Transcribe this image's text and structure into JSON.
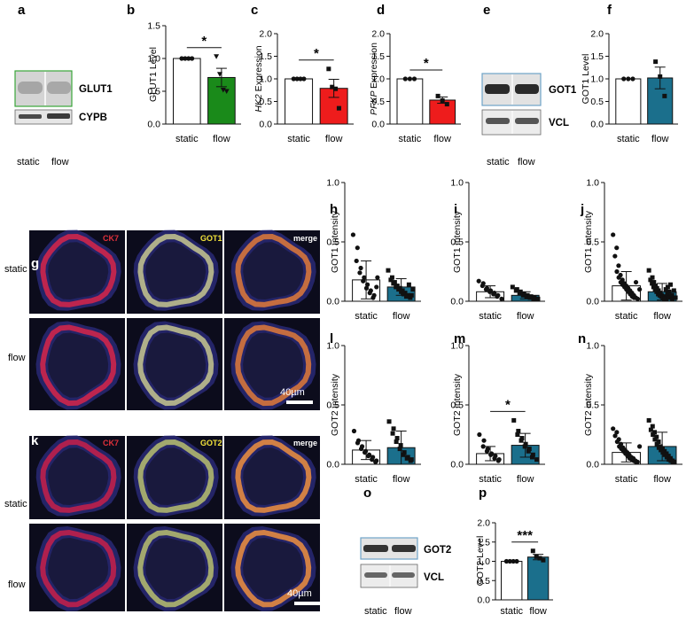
{
  "colors": {
    "white": "#ffffff",
    "green": "#1a8a1a",
    "red": "#ee1c1c",
    "teal": "#1b6f8c",
    "ck7": "#e0303a",
    "got": "#f2e23a",
    "merge": "#ffffff"
  },
  "panels": {
    "a": {
      "letter": "a",
      "bands": [
        "GLUT1",
        "CYPB"
      ],
      "lanes": [
        "static",
        "flow"
      ]
    },
    "e": {
      "letter": "e",
      "bands": [
        "GOT1",
        "VCL"
      ],
      "lanes": [
        "static",
        "flow"
      ]
    },
    "o": {
      "letter": "o",
      "bands": [
        "GOT2",
        "VCL"
      ],
      "lanes": [
        "static",
        "flow"
      ]
    },
    "g": {
      "letter": "g",
      "channels": [
        "CK7",
        "GOT1",
        "merge"
      ],
      "rows": [
        "static",
        "flow"
      ],
      "scalebar": "40µm"
    },
    "k": {
      "letter": "k",
      "channels": [
        "CK7",
        "GOT2",
        "merge"
      ],
      "rows": [
        "static",
        "flow"
      ],
      "scalebar": "40µm"
    }
  },
  "chart_data": [
    {
      "id": "b",
      "letter": "b",
      "type": "bar",
      "ylabel": "GLUT1 Level",
      "ylabel_italic": "",
      "ylim": [
        0,
        1.5
      ],
      "ticks": [
        "0.0",
        "0.5",
        "1.0",
        "1.5"
      ],
      "tick_values": [
        0,
        0.5,
        1.0,
        1.5
      ],
      "categories": [
        "static",
        "flow"
      ],
      "values": [
        1.0,
        0.71
      ],
      "errors": [
        0,
        0.14
      ],
      "points": [
        [
          1.0,
          1.0,
          1.0,
          1.0
        ],
        [
          1.03,
          0.76,
          0.52,
          0.5
        ]
      ],
      "marker": [
        "circle",
        "triangle"
      ],
      "fill": [
        "#ffffff",
        "#1a8a1a"
      ],
      "significance": "*"
    },
    {
      "id": "c",
      "letter": "c",
      "type": "bar",
      "ylabel": "Expression",
      "ylabel_italic": "HK2",
      "ylim": [
        0,
        2.0
      ],
      "ticks": [
        "0.0",
        "0.5",
        "1.0",
        "1.5",
        "2.0"
      ],
      "tick_values": [
        0,
        0.5,
        1.0,
        1.5,
        2.0
      ],
      "categories": [
        "static",
        "flow"
      ],
      "values": [
        1.0,
        0.79
      ],
      "errors": [
        0,
        0.2
      ],
      "points": [
        [
          1.0,
          1.0,
          1.0,
          1.0
        ],
        [
          1.22,
          0.82,
          0.78,
          0.35
        ]
      ],
      "marker": [
        "circle",
        "square"
      ],
      "fill": [
        "#ffffff",
        "#ee1c1c"
      ],
      "significance": "*"
    },
    {
      "id": "d",
      "letter": "d",
      "type": "bar",
      "ylabel": "Expression",
      "ylabel_italic": "PFKP",
      "ylim": [
        0,
        2.0
      ],
      "ticks": [
        "0.0",
        "0.5",
        "1.0",
        "1.5",
        "2.0"
      ],
      "tick_values": [
        0,
        0.5,
        1.0,
        1.5,
        2.0
      ],
      "categories": [
        "static",
        "flow"
      ],
      "values": [
        1.0,
        0.53
      ],
      "errors": [
        0,
        0.07
      ],
      "points": [
        [
          1.0,
          1.0,
          1.0
        ],
        [
          0.62,
          0.52,
          0.44
        ]
      ],
      "marker": [
        "circle",
        "square"
      ],
      "fill": [
        "#ffffff",
        "#ee1c1c"
      ],
      "significance": "*"
    },
    {
      "id": "f",
      "letter": "f",
      "type": "bar",
      "ylabel": "GOT1 Level",
      "ylabel_italic": "",
      "ylim": [
        0,
        2.0
      ],
      "ticks": [
        "0.0",
        "0.5",
        "1.0",
        "1.5",
        "2.0"
      ],
      "tick_values": [
        0,
        0.5,
        1.0,
        1.5,
        2.0
      ],
      "categories": [
        "static",
        "flow"
      ],
      "values": [
        1.0,
        1.02
      ],
      "errors": [
        0,
        0.24
      ],
      "points": [
        [
          1.0,
          1.0,
          1.0
        ],
        [
          1.38,
          1.05,
          0.62
        ]
      ],
      "marker": [
        "circle",
        "square"
      ],
      "fill": [
        "#ffffff",
        "#1b6f8c"
      ],
      "significance": ""
    },
    {
      "id": "h",
      "letter": "h",
      "type": "bar",
      "ylabel": "GOT1 intensity",
      "ylabel_italic": "",
      "ylim": [
        0,
        1.0
      ],
      "ticks": [
        "0.0",
        "0.5",
        "1.0"
      ],
      "tick_values": [
        0,
        0.5,
        1.0
      ],
      "categories": [
        "static",
        "flow"
      ],
      "values": [
        0.18,
        0.12
      ],
      "errors": [
        0.16,
        0.07
      ],
      "points": [
        [
          0.56,
          0.45,
          0.34,
          0.28,
          0.24,
          0.2,
          0.17,
          0.14,
          0.11,
          0.09,
          0.07,
          0.05,
          0.03,
          0.2,
          0.12
        ],
        [
          0.26,
          0.2,
          0.18,
          0.16,
          0.15,
          0.13,
          0.12,
          0.11,
          0.1,
          0.09,
          0.08,
          0.07,
          0.06,
          0.05,
          0.04,
          0.03,
          0.14,
          0.1,
          0.05
        ]
      ],
      "marker": [
        "circle",
        "square"
      ],
      "fill": [
        "#ffffff",
        "#1b6f8c"
      ],
      "significance": ""
    },
    {
      "id": "i",
      "letter": "i",
      "type": "bar",
      "ylabel": "GOT1 intensity",
      "ylabel_italic": "",
      "ylim": [
        0,
        1.0
      ],
      "ticks": [
        "0.0",
        "0.5",
        "1.0"
      ],
      "tick_values": [
        0,
        0.5,
        1.0
      ],
      "categories": [
        "static",
        "flow"
      ],
      "values": [
        0.08,
        0.05
      ],
      "errors": [
        0.05,
        0.03
      ],
      "points": [
        [
          0.17,
          0.15,
          0.13,
          0.11,
          0.1,
          0.09,
          0.08,
          0.07,
          0.06,
          0.05,
          0.04,
          0.02
        ],
        [
          0.12,
          0.1,
          0.09,
          0.08,
          0.07,
          0.06,
          0.05,
          0.05,
          0.04,
          0.04,
          0.03,
          0.03,
          0.02,
          0.02
        ]
      ],
      "marker": [
        "circle",
        "square"
      ],
      "fill": [
        "#ffffff",
        "#1b6f8c"
      ],
      "significance": ""
    },
    {
      "id": "j",
      "letter": "j",
      "type": "bar",
      "ylabel": "GOT1 intensity",
      "ylabel_italic": "",
      "ylim": [
        0,
        1.0
      ],
      "ticks": [
        "0.0",
        "0.5",
        "1.0"
      ],
      "tick_values": [
        0,
        0.5,
        1.0
      ],
      "categories": [
        "static",
        "flow"
      ],
      "values": [
        0.13,
        0.08
      ],
      "errors": [
        0.12,
        0.07
      ],
      "points": [
        [
          0.56,
          0.45,
          0.38,
          0.3,
          0.25,
          0.22,
          0.2,
          0.18,
          0.16,
          0.15,
          0.14,
          0.13,
          0.12,
          0.11,
          0.1,
          0.09,
          0.08,
          0.07,
          0.06,
          0.05,
          0.04,
          0.03,
          0.03,
          0.02,
          0.16,
          0.1
        ],
        [
          0.26,
          0.2,
          0.18,
          0.16,
          0.15,
          0.13,
          0.12,
          0.11,
          0.1,
          0.09,
          0.08,
          0.07,
          0.06,
          0.05,
          0.05,
          0.04,
          0.04,
          0.03,
          0.03,
          0.02,
          0.02,
          0.12,
          0.1,
          0.08,
          0.06,
          0.04,
          0.03,
          0.02,
          0.14,
          0.09,
          0.05,
          0.03
        ]
      ],
      "marker": [
        "circle",
        "square"
      ],
      "fill": [
        "#ffffff",
        "#1b6f8c"
      ],
      "significance": ""
    },
    {
      "id": "l",
      "letter": "l",
      "type": "bar",
      "ylabel": "GOT2 intensity",
      "ylabel_italic": "",
      "ylim": [
        0,
        1.0
      ],
      "ticks": [
        "0.0",
        "0.5",
        "1.0"
      ],
      "tick_values": [
        0,
        0.5,
        1.0
      ],
      "categories": [
        "static",
        "flow"
      ],
      "values": [
        0.12,
        0.14
      ],
      "errors": [
        0.08,
        0.14
      ],
      "points": [
        [
          0.28,
          0.2,
          0.18,
          0.15,
          0.13,
          0.11,
          0.1,
          0.08,
          0.07,
          0.06,
          0.04,
          0.03,
          0.02
        ],
        [
          0.36,
          0.3,
          0.26,
          0.22,
          0.19,
          0.16,
          0.13,
          0.1,
          0.08,
          0.06,
          0.05,
          0.04,
          0.03
        ]
      ],
      "marker": [
        "circle",
        "square"
      ],
      "fill": [
        "#ffffff",
        "#1b6f8c"
      ],
      "significance": ""
    },
    {
      "id": "m",
      "letter": "m",
      "type": "bar",
      "ylabel": "GOT2 intensity",
      "ylabel_italic": "",
      "ylim": [
        0,
        1.0
      ],
      "ticks": [
        "0.0",
        "0.5",
        "1.0"
      ],
      "tick_values": [
        0,
        0.5,
        1.0
      ],
      "categories": [
        "static",
        "flow"
      ],
      "values": [
        0.09,
        0.16
      ],
      "errors": [
        0.06,
        0.1
      ],
      "points": [
        [
          0.25,
          0.2,
          0.15,
          0.13,
          0.11,
          0.09,
          0.08,
          0.07,
          0.05,
          0.04,
          0.03
        ],
        [
          0.37,
          0.28,
          0.25,
          0.22,
          0.2,
          0.17,
          0.15,
          0.13,
          0.11,
          0.08,
          0.06,
          0.04
        ]
      ],
      "marker": [
        "circle",
        "square"
      ],
      "fill": [
        "#ffffff",
        "#1b6f8c"
      ],
      "significance": "*"
    },
    {
      "id": "n",
      "letter": "n",
      "type": "bar",
      "ylabel": "GOT2 intensity",
      "ylabel_italic": "",
      "ylim": [
        0,
        1.0
      ],
      "ticks": [
        "0.0",
        "0.5",
        "1.0"
      ],
      "tick_values": [
        0,
        0.5,
        1.0
      ],
      "categories": [
        "static",
        "flow"
      ],
      "values": [
        0.1,
        0.15
      ],
      "errors": [
        0.08,
        0.12
      ],
      "points": [
        [
          0.3,
          0.27,
          0.24,
          0.21,
          0.19,
          0.17,
          0.15,
          0.14,
          0.13,
          0.12,
          0.11,
          0.1,
          0.09,
          0.08,
          0.07,
          0.06,
          0.05,
          0.05,
          0.04,
          0.03,
          0.03,
          0.02,
          0.02,
          0.15
        ],
        [
          0.37,
          0.32,
          0.29,
          0.27,
          0.25,
          0.23,
          0.21,
          0.19,
          0.17,
          0.15,
          0.14,
          0.13,
          0.12,
          0.11,
          0.1,
          0.09,
          0.08,
          0.07,
          0.06,
          0.05,
          0.04,
          0.03,
          0.03,
          0.02,
          0.02
        ]
      ],
      "marker": [
        "circle",
        "square"
      ],
      "fill": [
        "#ffffff",
        "#1b6f8c"
      ],
      "significance": ""
    },
    {
      "id": "p",
      "letter": "p",
      "type": "bar",
      "ylabel": "GOT2 Level",
      "ylabel_italic": "",
      "ylim": [
        0,
        2.0
      ],
      "ticks": [
        "0.0",
        "0.5",
        "1.0",
        "1.5",
        "2.0"
      ],
      "tick_values": [
        0,
        0.5,
        1.0,
        1.5,
        2.0
      ],
      "categories": [
        "static",
        "flow"
      ],
      "values": [
        1.0,
        1.11
      ],
      "errors": [
        0,
        0.07
      ],
      "points": [
        [
          1.0,
          1.0,
          1.0,
          1.0
        ],
        [
          1.27,
          1.12,
          1.08,
          1.03
        ]
      ],
      "marker": [
        "circle",
        "square"
      ],
      "fill": [
        "#ffffff",
        "#1b6f8c"
      ],
      "significance": "***"
    }
  ]
}
